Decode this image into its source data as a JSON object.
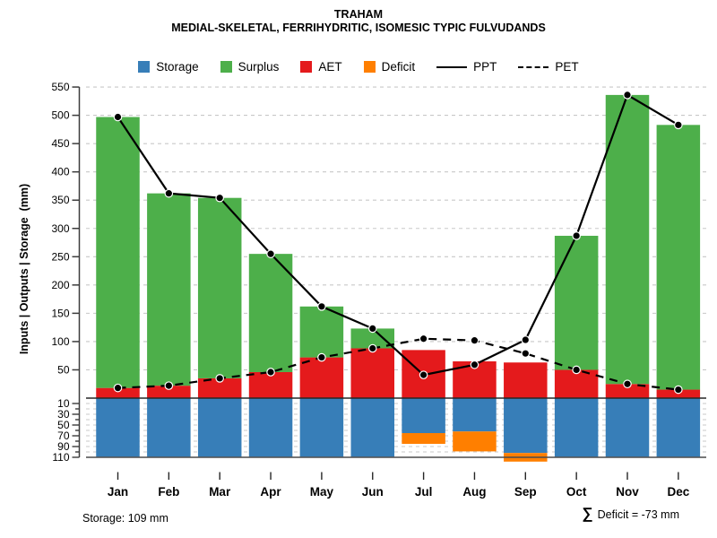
{
  "title": "TRAHAM",
  "subtitle": "MEDIAL-SKELETAL, FERRIHYDRITIC, ISOMESIC TYPIC FULVUDANDS",
  "y_axis_label": "Inputs | Outputs | Storage  (mm)",
  "legend": {
    "items": [
      {
        "label": "Storage",
        "swatch": "square",
        "color": "#377EB8"
      },
      {
        "label": "Surplus",
        "swatch": "square",
        "color": "#4DAF4A"
      },
      {
        "label": "AET",
        "swatch": "square",
        "color": "#E41A1C"
      },
      {
        "label": "Deficit",
        "swatch": "square",
        "color": "#FF7F00"
      },
      {
        "label": "PPT",
        "swatch": "solid-line",
        "color": "#000000"
      },
      {
        "label": "PET",
        "swatch": "dashed-line",
        "color": "#000000"
      }
    ]
  },
  "footer": {
    "storage_note": "Storage: 109 mm",
    "deficit_sigma": "∑",
    "deficit_note": "Deficit = -73 mm"
  },
  "chart_data": {
    "type": "bar",
    "subtype": "monthly-water-balance combo (stacked bars + lines, inverted storage strip below zero)",
    "title": "TRAHAM",
    "subtitle": "MEDIAL-SKELETAL, FERRIHYDRITIC, ISOMESIC TYPIC FULVUDANDS",
    "xlabel": "",
    "ylabel": "Inputs | Outputs | Storage  (mm)",
    "categories": [
      "Jan",
      "Feb",
      "Mar",
      "Apr",
      "May",
      "Jun",
      "Jul",
      "Aug",
      "Sep",
      "Oct",
      "Nov",
      "Dec"
    ],
    "series": [
      {
        "name": "Storage",
        "type": "bar",
        "axis": "lower-inverted",
        "color": "#377EB8",
        "values": [
          109,
          109,
          109,
          109,
          109,
          109,
          65,
          62,
          102,
          109,
          109,
          109
        ]
      },
      {
        "name": "Surplus",
        "type": "bar",
        "stack": "on-top-of-AET",
        "color": "#4DAF4A",
        "values": [
          479,
          340,
          319,
          209,
          90,
          35,
          0,
          0,
          0,
          237,
          511,
          468
        ]
      },
      {
        "name": "AET",
        "type": "bar",
        "stack": "base-above-zero",
        "color": "#E41A1C",
        "values": [
          18,
          22,
          35,
          46,
          72,
          88,
          85,
          65,
          63,
          50,
          25,
          15
        ]
      },
      {
        "name": "Deficit",
        "type": "bar",
        "axis": "lower-inverted",
        "stack": "below-Storage",
        "color": "#FF7F00",
        "values": [
          0,
          0,
          0,
          0,
          0,
          0,
          20,
          37,
          16,
          0,
          0,
          0
        ]
      },
      {
        "name": "PPT",
        "type": "line",
        "style": "solid",
        "color": "#000000",
        "marker": "filled-circle",
        "values": [
          497,
          362,
          354,
          255,
          162,
          123,
          41,
          59,
          103,
          287,
          536,
          483
        ]
      },
      {
        "name": "PET",
        "type": "line",
        "style": "dashed",
        "color": "#000000",
        "marker": "filled-circle",
        "values": [
          18,
          22,
          35,
          46,
          72,
          88,
          105,
          102,
          79,
          50,
          25,
          15
        ]
      }
    ],
    "y_ticks_upper": [
      50,
      100,
      150,
      200,
      250,
      300,
      350,
      400,
      450,
      500,
      550
    ],
    "y_ticks_lower_all": [
      10,
      20,
      30,
      40,
      50,
      60,
      70,
      80,
      90,
      100,
      110
    ],
    "y_ticks_lower_labeled": [
      10,
      30,
      50,
      70,
      90,
      110
    ],
    "ylim_upper_mm": [
      0,
      560
    ],
    "ylim_lower_inverted_mm": [
      0,
      110
    ],
    "grid": "dashed horizontal gridlines at every upper tick (50 mm) and every lower tick (10 mm)",
    "legend_position": "top-center",
    "storage_capacity_mm": 109,
    "deficit_total_mm": -73
  }
}
